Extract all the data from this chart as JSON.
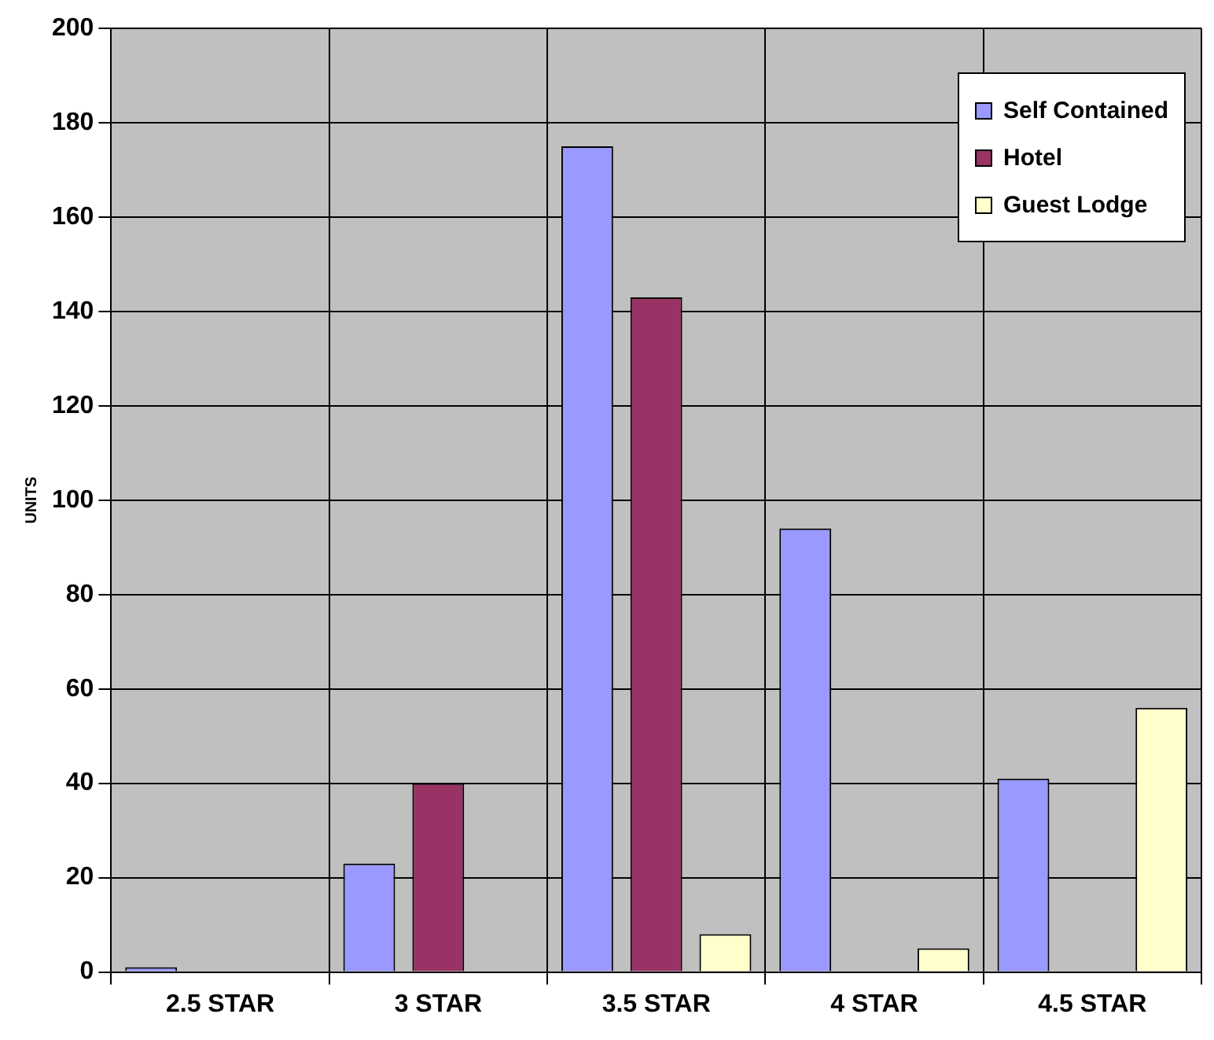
{
  "chart_data": {
    "type": "bar",
    "ylabel": "UNITS",
    "categories": [
      "2.5 STAR",
      "3 STAR",
      "3.5 STAR",
      "4 STAR",
      "4.5 STAR"
    ],
    "series": [
      {
        "name": "Self Contained",
        "color": "#9999ff",
        "values": [
          1,
          23,
          175,
          94,
          41
        ]
      },
      {
        "name": "Hotel",
        "color": "#993366",
        "values": [
          0,
          40,
          143,
          0,
          0
        ]
      },
      {
        "name": "Guest Lodge",
        "color": "#ffffcc",
        "values": [
          0,
          0,
          8,
          5,
          56
        ]
      }
    ],
    "ylim": [
      0,
      200
    ],
    "yticks": [
      0,
      20,
      40,
      60,
      80,
      100,
      120,
      140,
      160,
      180,
      200
    ],
    "grid": true,
    "legend": "top right"
  }
}
